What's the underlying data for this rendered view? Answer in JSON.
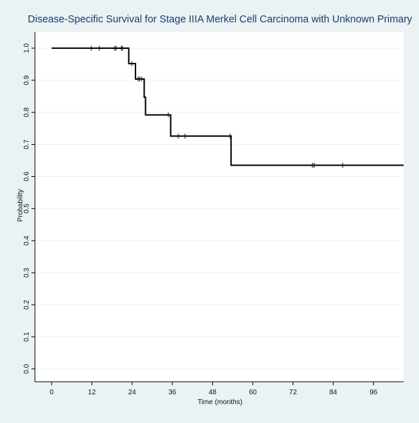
{
  "chart_data": {
    "type": "line",
    "title": "Disease-Specific Survival for Stage IIIA Merkel Cell Carcinoma with Unknown Primary",
    "xlabel": "Time (months)",
    "ylabel": "Probability",
    "xlim": [
      -5,
      105
    ],
    "ylim": [
      -0.04,
      1.05
    ],
    "x_ticks": [
      0,
      12,
      24,
      36,
      48,
      60,
      72,
      84,
      96
    ],
    "y_ticks": [
      0.0,
      0.1,
      0.2,
      0.3,
      0.4,
      0.5,
      0.6,
      0.7,
      0.8,
      0.9,
      1.0
    ],
    "x_tick_labels": [
      "0",
      "12",
      "24",
      "36",
      "48",
      "60",
      "72",
      "84",
      "96"
    ],
    "y_tick_labels": [
      "0.0",
      "0.1",
      "0.2",
      "0.3",
      "0.4",
      "0.5",
      "0.6",
      "0.7",
      "0.8",
      "0.9",
      "1.0"
    ],
    "grid": true,
    "step": [
      {
        "x": 0,
        "y": 1.0
      },
      {
        "x": 23,
        "y": 0.952
      },
      {
        "x": 25,
        "y": 0.904
      },
      {
        "x": 27.6,
        "y": 0.847
      },
      {
        "x": 28,
        "y": 0.792
      },
      {
        "x": 35.5,
        "y": 0.726
      },
      {
        "x": 53.5,
        "y": 0.635
      },
      {
        "x": 105,
        "y": 0.635
      }
    ],
    "censored": [
      {
        "x": 11.8,
        "y": 1.0
      },
      {
        "x": 14.2,
        "y": 1.0
      },
      {
        "x": 18.8,
        "y": 1.0
      },
      {
        "x": 19.2,
        "y": 1.0
      },
      {
        "x": 20.8,
        "y": 1.0
      },
      {
        "x": 21.1,
        "y": 1.0
      },
      {
        "x": 23.9,
        "y": 0.952
      },
      {
        "x": 25.8,
        "y": 0.904
      },
      {
        "x": 26.2,
        "y": 0.904
      },
      {
        "x": 26.8,
        "y": 0.904
      },
      {
        "x": 34.8,
        "y": 0.792
      },
      {
        "x": 37.8,
        "y": 0.726
      },
      {
        "x": 39.8,
        "y": 0.726
      },
      {
        "x": 53.2,
        "y": 0.726
      },
      {
        "x": 77.8,
        "y": 0.635
      },
      {
        "x": 78.3,
        "y": 0.635
      },
      {
        "x": 86.8,
        "y": 0.635
      }
    ],
    "colors": {
      "background": "#eaf2f3",
      "plot_bg": "#ffffff",
      "grid": "#eaf2f3",
      "line": "#000000",
      "censor": "#2a6e2a"
    }
  }
}
